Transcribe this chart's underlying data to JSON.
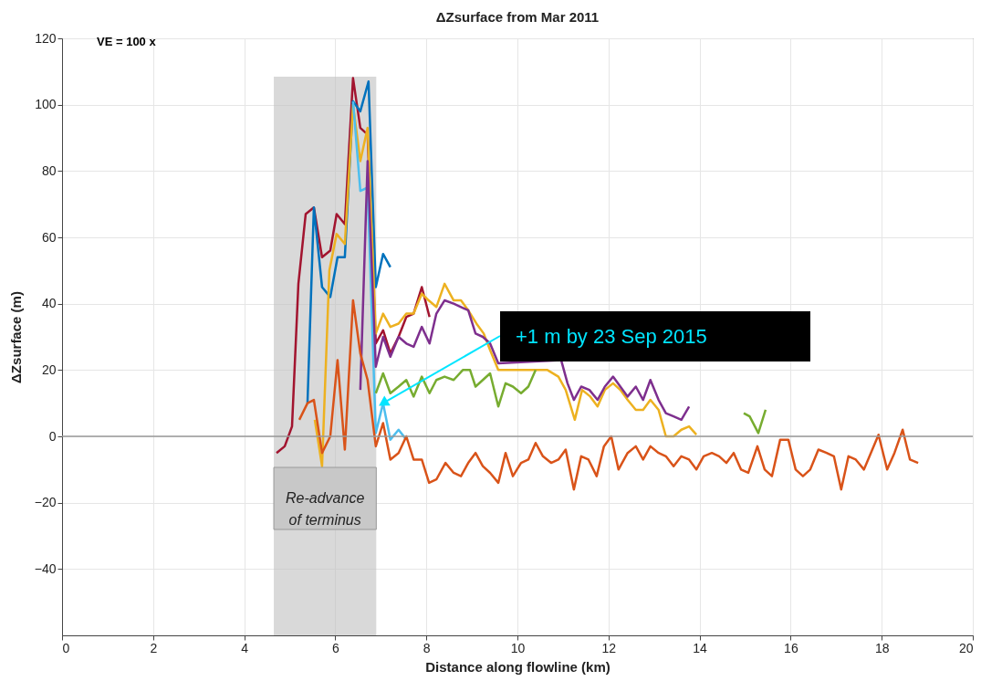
{
  "chart_data": {
    "type": "line",
    "title": "ΔZsurface from Mar 2011",
    "xlabel": "Distance along flowline (km)",
    "ylabel": "ΔZsurface (m)",
    "xlim": [
      0,
      20
    ],
    "xticks": [
      0,
      2,
      4,
      6,
      8,
      10,
      12,
      14,
      16,
      18,
      20
    ],
    "ylim": [
      -60,
      120
    ],
    "yticks": [
      -40,
      -20,
      0,
      20,
      40,
      60,
      80,
      100,
      120
    ],
    "grid": true,
    "legend": false,
    "marker": "none",
    "line_style": "solid",
    "annotations": [
      "VE = 100 x",
      {
        "text": "+1 m by 23 Sep 2015",
        "x": 7.05,
        "y": 10
      }
    ],
    "ref_lines": [
      {
        "axis": "y",
        "value": 0,
        "color": "#999999"
      }
    ],
    "bands": [
      {
        "axis": "x",
        "from": 4.65,
        "to": 6.9,
        "label": "Re-advance of terminus",
        "color": "#bfbfbf"
      }
    ],
    "series": [
      {
        "color": "#a2142f",
        "x": [
          4.71,
          4.89,
          5.05,
          5.19,
          5.35,
          5.53,
          5.71,
          5.89,
          6.03,
          6.21,
          6.39,
          6.55,
          6.71,
          6.89,
          7.05,
          7.21,
          7.39,
          7.56,
          7.72,
          7.9,
          8.07
        ],
        "values": [
          -5,
          -3,
          3,
          46,
          67,
          69,
          54,
          56,
          67,
          64,
          108,
          93,
          91,
          28,
          32,
          25,
          30,
          36,
          37,
          45,
          36
        ]
      },
      {
        "color": "#0072bd",
        "x": [
          5.39,
          5.53,
          5.71,
          5.89,
          6.05,
          6.21,
          6.39,
          6.55,
          6.73,
          6.89,
          7.05,
          7.21
        ],
        "values": [
          10,
          69,
          45,
          42,
          54,
          54,
          101,
          98,
          107,
          45,
          55,
          51
        ]
      },
      {
        "color": "#edb120",
        "x": [
          5.55,
          5.71,
          5.87,
          6.03,
          6.21,
          6.39,
          6.55,
          6.71,
          6.89,
          7.05,
          7.21,
          7.39,
          7.56,
          7.72,
          7.9,
          8.05,
          8.22,
          8.4,
          8.6,
          8.76,
          8.92,
          9.1,
          9.26,
          9.4,
          9.58,
          10.66,
          10.9,
          11.06,
          11.26,
          11.42,
          11.6,
          11.76,
          11.92,
          12.1,
          12.26,
          12.42,
          12.6,
          12.76,
          12.92,
          13.1,
          13.26,
          13.43,
          13.6,
          13.77,
          13.93
        ],
        "values": [
          5,
          -9,
          50,
          61,
          58,
          100,
          83,
          93,
          31,
          37,
          33,
          34,
          37,
          37,
          43,
          41,
          39,
          46,
          41,
          41,
          38,
          34,
          31,
          26,
          20,
          20,
          18,
          14,
          5,
          14,
          12,
          9,
          14,
          16,
          14,
          11,
          8,
          8,
          11,
          8,
          0,
          0,
          2,
          3,
          0.5
        ]
      },
      {
        "color": "#4dbeee",
        "x": [
          6.39,
          6.55,
          6.71,
          6.89,
          7.05,
          7.21,
          7.39,
          7.56
        ],
        "values": [
          101,
          74,
          75,
          1,
          10,
          -1,
          2,
          -1
        ]
      },
      {
        "color": "#7e2f8e",
        "x": [
          6.55,
          6.71,
          6.89,
          7.05,
          7.21,
          7.39,
          7.56,
          7.72,
          7.9,
          8.07,
          8.22,
          8.4,
          8.6,
          8.76,
          8.92,
          9.08,
          9.24,
          9.4,
          9.58,
          10.96,
          11.1,
          11.24,
          11.4,
          11.58,
          11.76,
          11.92,
          12.1,
          12.26,
          12.42,
          12.6,
          12.76,
          12.92,
          13.1,
          13.26,
          13.43,
          13.6,
          13.77
        ],
        "values": [
          14,
          83,
          21,
          30,
          24,
          30,
          28,
          27,
          33,
          28,
          37,
          41,
          40,
          39,
          38,
          31,
          30,
          28,
          22,
          23,
          16,
          11,
          15,
          14,
          11,
          15,
          18,
          15,
          12,
          15,
          11,
          17,
          11,
          7,
          6,
          5,
          9
        ]
      },
      {
        "color": "#77ac30",
        "x": [
          6.89,
          7.05,
          7.21,
          7.39,
          7.56,
          7.72,
          7.9,
          8.07,
          8.22,
          8.4,
          8.6,
          8.8,
          8.96,
          9.08,
          9.24,
          9.4,
          9.58,
          9.74,
          9.9,
          10.08,
          10.24,
          10.4,
          12.0,
          14.97,
          15.1,
          15.29,
          15.45
        ],
        "values": [
          13,
          19,
          13,
          15,
          17,
          12,
          18,
          13,
          17,
          18,
          17,
          20,
          20,
          15,
          17,
          19,
          9,
          16,
          15,
          13,
          15,
          20,
          null,
          7,
          6,
          1,
          8
        ]
      },
      {
        "color": "#d95319",
        "x": [
          5.21,
          5.39,
          5.53,
          5.71,
          5.89,
          6.05,
          6.21,
          6.39,
          6.55,
          6.71,
          6.89,
          7.05,
          7.21,
          7.39,
          7.56,
          7.72,
          7.9,
          8.06,
          8.22,
          8.42,
          8.6,
          8.76,
          8.92,
          9.08,
          9.24,
          9.4,
          9.58,
          9.74,
          9.9,
          10.08,
          10.24,
          10.4,
          10.56,
          10.74,
          10.9,
          11.06,
          11.24,
          11.4,
          11.56,
          11.74,
          11.9,
          12.06,
          12.22,
          12.42,
          12.6,
          12.76,
          12.92,
          13.1,
          13.26,
          13.43,
          13.6,
          13.77,
          13.93,
          14.09,
          14.27,
          14.43,
          14.59,
          14.75,
          14.91,
          15.07,
          15.27,
          15.43,
          15.59,
          15.77,
          15.95,
          16.11,
          16.27,
          16.43,
          16.61,
          16.79,
          16.95,
          17.11,
          17.27,
          17.43,
          17.61,
          17.93,
          18.12,
          18.28,
          18.46,
          18.62,
          18.8
        ],
        "values": [
          5,
          10,
          11,
          -5,
          0,
          23,
          -4,
          41,
          25,
          17,
          -3,
          4,
          -7,
          -5,
          0,
          -7,
          -7,
          -14,
          -13,
          -8,
          -11,
          -12,
          -8,
          -5,
          -9,
          -11,
          -14,
          -5,
          -12,
          -8,
          -7,
          -2,
          -6,
          -8,
          -7,
          -4,
          -16,
          -6,
          -7,
          -12,
          -3,
          0,
          -10,
          -5,
          -3,
          -7,
          -3,
          -5,
          -6,
          -9,
          -6,
          -7,
          -10,
          -6,
          -5,
          -6,
          -8,
          -5,
          -10,
          -11,
          -3,
          -10,
          -12,
          -1,
          -1,
          -10,
          -12,
          -10,
          -4,
          -5,
          -6,
          -16,
          -6,
          -7,
          -10,
          0.5,
          -10,
          -5,
          2,
          -7,
          -8
        ]
      }
    ]
  }
}
